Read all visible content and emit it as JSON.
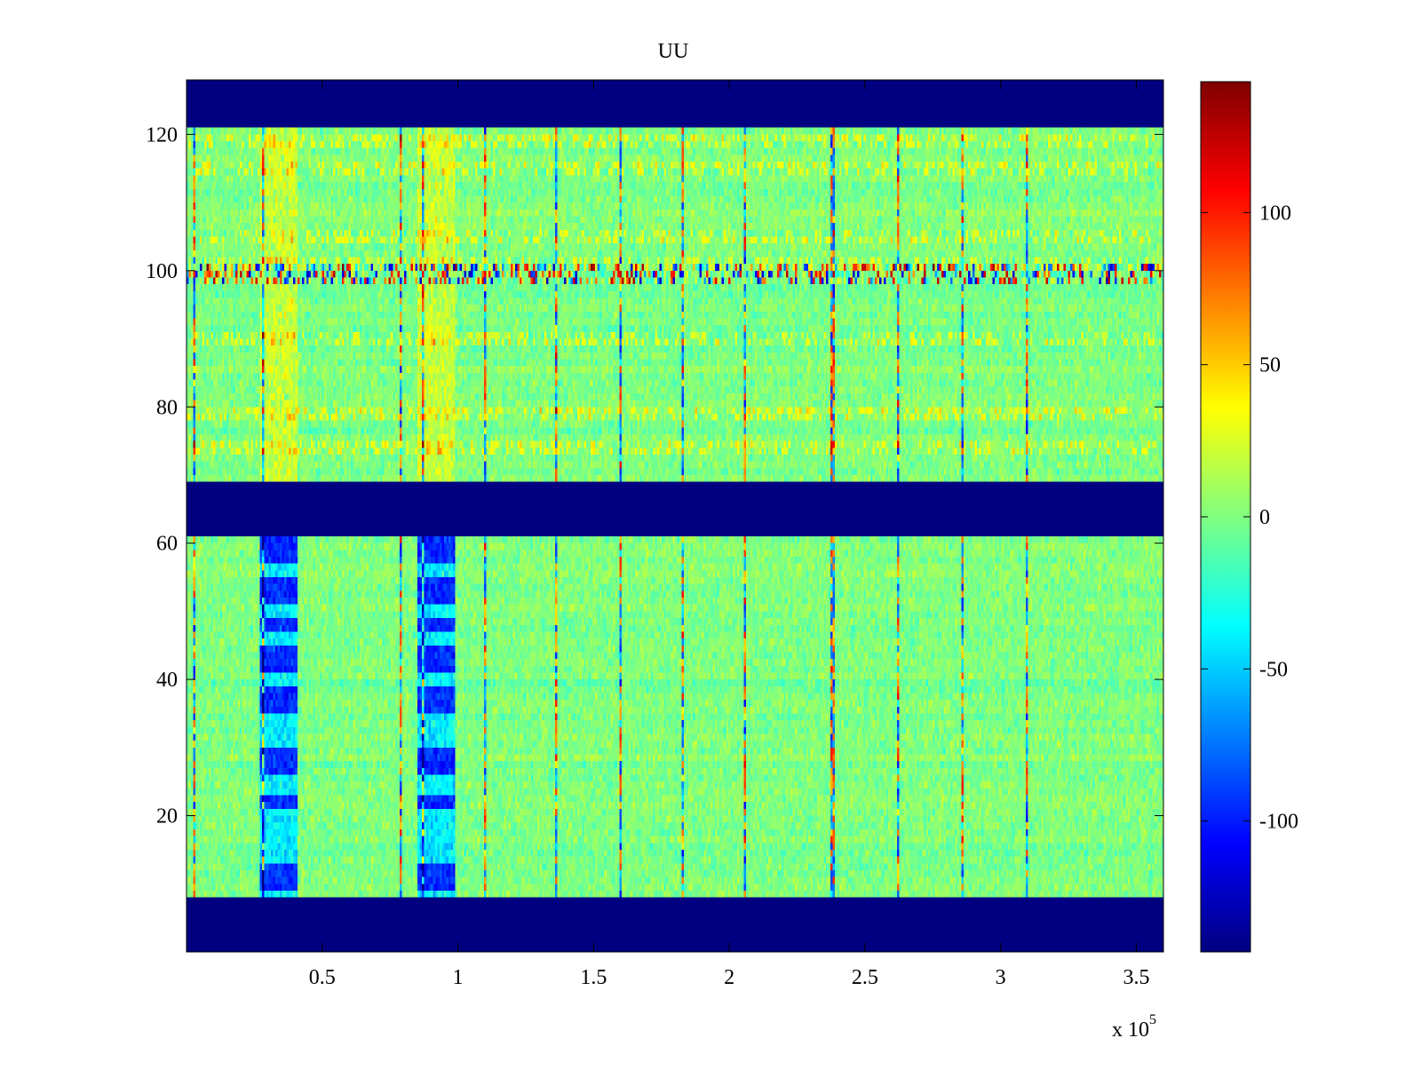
{
  "chart_data": {
    "type": "heatmap",
    "title": "UU",
    "xlabel": "",
    "ylabel": "",
    "x_exponent_label": "x 10",
    "x_exponent_power": "5",
    "xlim": [
      0,
      360000
    ],
    "ylim": [
      0,
      128
    ],
    "x_ticks": [
      50000,
      100000,
      150000,
      200000,
      250000,
      300000,
      350000
    ],
    "x_tick_labels": [
      "0.5",
      "1",
      "1.5",
      "2",
      "2.5",
      "3",
      "3.5"
    ],
    "y_ticks": [
      20,
      40,
      60,
      80,
      100,
      120
    ],
    "y_tick_labels": [
      "20",
      "40",
      "60",
      "80",
      "100",
      "120"
    ],
    "colormap": "jet",
    "clim": [
      -143,
      143
    ],
    "colorbar_ticks": [
      -100,
      -50,
      0,
      50,
      100
    ],
    "colorbar_tick_labels": [
      "-100",
      "-50",
      "0",
      "50",
      "100"
    ],
    "background_value": -143,
    "background_color": "#00008f",
    "data_row_ranges": [
      [
        8,
        61
      ],
      [
        69,
        121
      ]
    ],
    "special_row_band": [
      98.5,
      101
    ],
    "notable_columns_x": [
      3000,
      28000,
      79000,
      87000,
      110000,
      136000,
      160000,
      183000,
      206000,
      238000,
      262000,
      286000,
      310000
    ],
    "strong_columns_x": [
      31000,
      34000,
      37000,
      89000,
      92000,
      95000
    ],
    "high_rows_upper": [
      74,
      79,
      90,
      101,
      105,
      115,
      119
    ],
    "low_rows_lower": [
      10,
      12,
      22,
      27,
      29,
      36,
      38,
      42,
      44,
      48,
      52,
      54,
      58,
      60
    ],
    "value_range_texture": {
      "mean": 0,
      "spread": 20
    }
  }
}
